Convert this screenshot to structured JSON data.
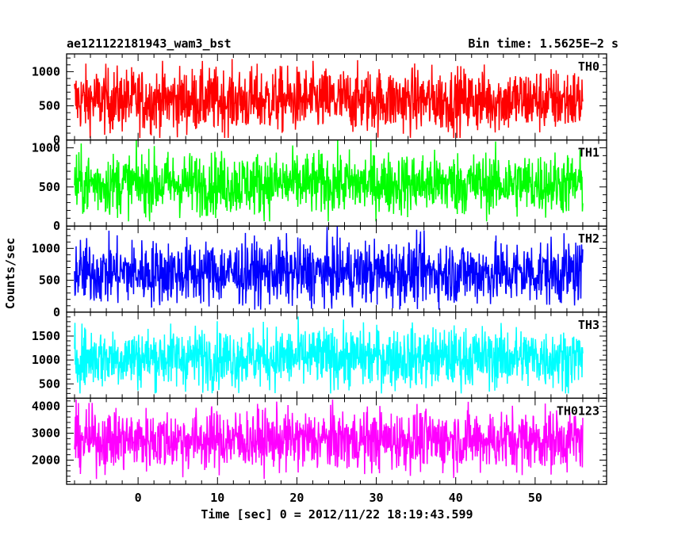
{
  "chart_data": {
    "type": "line",
    "title_left": "ae121122181943_wam3_bst",
    "title_right": "Bin time: 1.5625E−2 s",
    "xlabel": "Time [sec] 0 = 2012/11/22 18:19:43.599",
    "ylabel": "Counts/sec",
    "xlim": [
      -9,
      59
    ],
    "data_range": [
      -8,
      56
    ],
    "x_ticks": [
      0,
      10,
      20,
      30,
      40,
      50
    ],
    "x_tick_labels": [
      "0",
      "10",
      "20",
      "30",
      "40",
      "50"
    ],
    "grid": false,
    "panels": [
      {
        "name": "TH0",
        "color": "#ff0000",
        "ylim": [
          0,
          1260
        ],
        "y_ticks": [
          0,
          500,
          1000
        ],
        "y_tick_labels": [
          "0",
          "500",
          "1000"
        ],
        "mean": 580,
        "typical_min": 30,
        "typical_max": 1260
      },
      {
        "name": "TH1",
        "color": "#00ff00",
        "ylim": [
          0,
          1100
        ],
        "y_ticks": [
          0,
          500,
          1000
        ],
        "y_tick_labels": [
          "0",
          "500",
          "1000"
        ],
        "mean": 540,
        "typical_min": 60,
        "typical_max": 1100
      },
      {
        "name": "TH2",
        "color": "#0000ff",
        "ylim": [
          0,
          1350
        ],
        "y_ticks": [
          0,
          500,
          1000
        ],
        "y_tick_labels": [
          "0",
          "500",
          "1000"
        ],
        "mean": 620,
        "typical_min": 40,
        "typical_max": 1350
      },
      {
        "name": "TH3",
        "color": "#00ffff",
        "ylim": [
          200,
          2000
        ],
        "y_ticks": [
          500,
          1000,
          1500
        ],
        "y_tick_labels": [
          "500",
          "1000",
          "1500"
        ],
        "mean": 1050,
        "typical_min": 300,
        "typical_max": 1950
      },
      {
        "name": "TH0123",
        "color": "#ff00ff",
        "ylim": [
          1100,
          4300
        ],
        "y_ticks": [
          2000,
          3000,
          4000
        ],
        "y_tick_labels": [
          "2000",
          "3000",
          "4000"
        ],
        "mean": 2750,
        "typical_min": 1300,
        "typical_max": 4250
      }
    ]
  }
}
